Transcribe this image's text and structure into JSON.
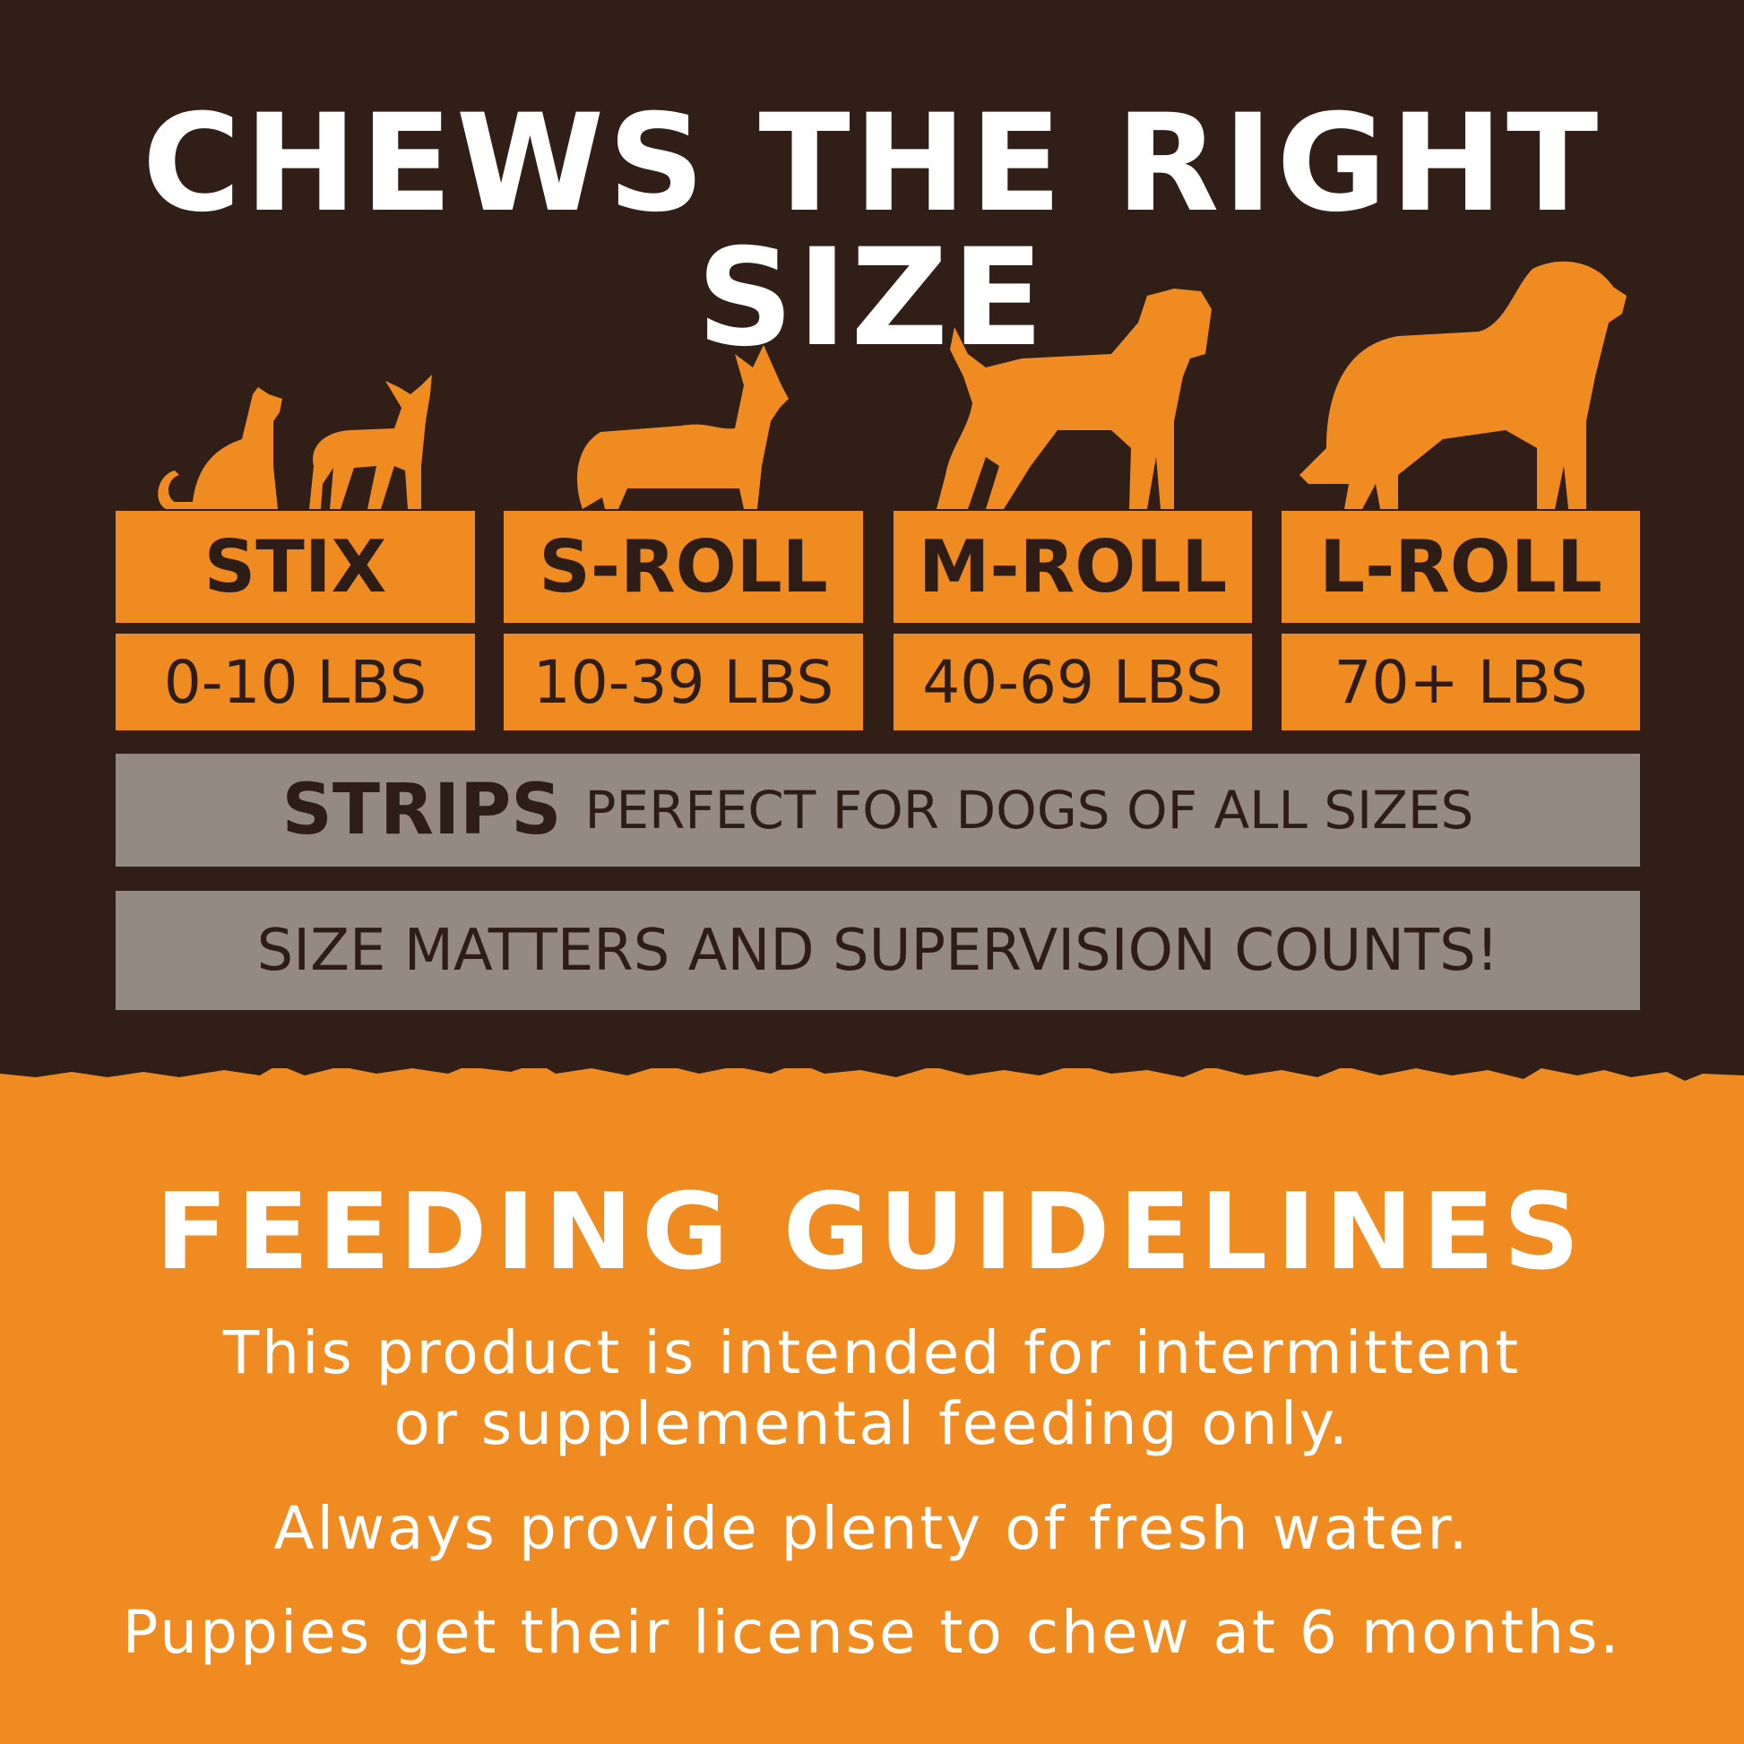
{
  "title": "CHEWS THE RIGHT SIZE",
  "sizes": [
    {
      "name": "STIX",
      "weight": "0-10 LBS",
      "animal": "cat-and-small-dog-icon"
    },
    {
      "name": "S-ROLL",
      "weight": "10-39 LBS",
      "animal": "corgi-icon"
    },
    {
      "name": "M-ROLL",
      "weight": "40-69 LBS",
      "animal": "medium-dog-icon"
    },
    {
      "name": "L-ROLL",
      "weight": "70+ LBS",
      "animal": "large-dog-icon"
    }
  ],
  "strips": {
    "label": "STRIPS",
    "text": "PERFECT FOR DOGS OF ALL SIZES"
  },
  "notice": "SIZE MATTERS AND SUPERVISION COUNTS!",
  "feeding": {
    "title": "FEEDING GUIDELINES",
    "line1": "This product is intended for intermittent",
    "line2": "or supplemental feeding only.",
    "line3": "Always provide plenty of fresh water.",
    "line4": "Puppies get their license to chew at 6 months."
  },
  "colors": {
    "dark": "#311e17",
    "orange": "#ef8b21",
    "grey": "#958a83"
  }
}
